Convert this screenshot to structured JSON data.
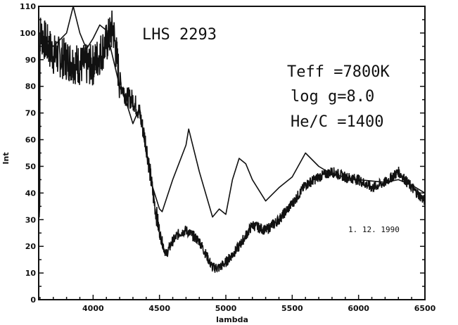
{
  "chart_data": {
    "type": "line",
    "title": "LHS 2293",
    "xlabel": "lambda",
    "ylabel": "Int",
    "xlim": [
      3590,
      6500
    ],
    "ylim": [
      0,
      110
    ],
    "xticks": [
      4000,
      4500,
      5000,
      5500,
      6000,
      6500
    ],
    "yticks": [
      0,
      10,
      20,
      30,
      40,
      50,
      60,
      70,
      80,
      90,
      100,
      110
    ],
    "grid": false,
    "annotations": [
      "Teff =7800K",
      "log g=8.0",
      "He/C =1400"
    ],
    "date": "1. 12. 1990",
    "series": [
      {
        "style": "noisy thick line (observed)",
        "x": [
          3600,
          3700,
          3800,
          3900,
          4000,
          4100,
          4150,
          4200,
          4250,
          4300,
          4350,
          4400,
          4450,
          4500,
          4550,
          4600,
          4650,
          4700,
          4750,
          4800,
          4850,
          4900,
          4950,
          5000,
          5100,
          5200,
          5300,
          5400,
          5500,
          5600,
          5700,
          5800,
          5900,
          6000,
          6100,
          6200,
          6300,
          6400,
          6500
        ],
        "y": [
          100,
          92,
          90,
          88,
          88,
          96,
          102,
          82,
          76,
          75,
          70,
          58,
          40,
          25,
          17,
          22,
          25,
          26,
          24,
          22,
          17,
          12,
          12,
          14,
          20,
          28,
          26,
          30,
          36,
          43,
          46,
          48,
          46,
          45,
          42,
          44,
          48,
          42,
          37
        ]
      },
      {
        "style": "smooth thin line (model)",
        "x": [
          3600,
          3700,
          3800,
          3850,
          3900,
          3950,
          4000,
          4050,
          4100,
          4200,
          4250,
          4300,
          4350,
          4400,
          4450,
          4500,
          4520,
          4600,
          4700,
          4720,
          4800,
          4900,
          4950,
          5000,
          5050,
          5100,
          5150,
          5200,
          5300,
          5400,
          5500,
          5600,
          5700,
          5800,
          6000,
          6200,
          6300,
          6400,
          6500
        ],
        "y": [
          100,
          95,
          100,
          110,
          100,
          94,
          98,
          103,
          101,
          80,
          74,
          66,
          72,
          55,
          42,
          34,
          33,
          45,
          58,
          64,
          48,
          31,
          34,
          32,
          45,
          53,
          51,
          45,
          37,
          42,
          46,
          55,
          50,
          47,
          45,
          44,
          45,
          43,
          40
        ]
      }
    ]
  }
}
